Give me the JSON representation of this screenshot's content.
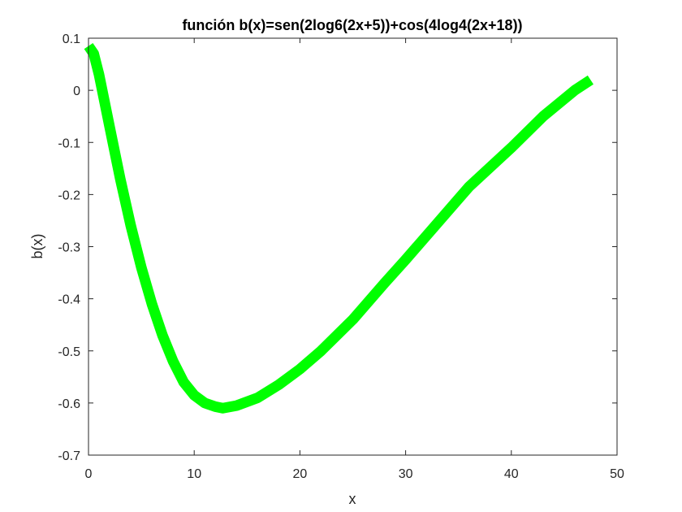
{
  "chart_data": {
    "type": "line",
    "title": "función b(x)=sen(2log6(2x+5))+cos(4log4(2x+18))",
    "xlabel": "x",
    "ylabel": "b(x)",
    "xlim": [
      0,
      50
    ],
    "ylim": [
      -0.7,
      0.1
    ],
    "xticks": [
      0,
      10,
      20,
      30,
      40,
      50
    ],
    "xtick_labels": [
      "0",
      "10",
      "20",
      "30",
      "40",
      "50"
    ],
    "yticks": [
      0.1,
      0,
      -0.1,
      -0.2,
      -0.3,
      -0.4,
      -0.5,
      -0.6,
      -0.7
    ],
    "ytick_labels": [
      "0.1",
      "0",
      "-0.1",
      "-0.2",
      "-0.3",
      "-0.4",
      "-0.5",
      "-0.6",
      "-0.7"
    ],
    "grid": false,
    "legend": "none",
    "series": [
      {
        "color": "#00ff00",
        "x": [
          0,
          0.5,
          1,
          2,
          3,
          4,
          5,
          6,
          7,
          8,
          9,
          10,
          11,
          12,
          12.7,
          14,
          16,
          18,
          20,
          22,
          25,
          28,
          30,
          33,
          36,
          40,
          43,
          46,
          47.5
        ],
        "y": [
          0.085,
          0.07,
          0.03,
          -0.07,
          -0.17,
          -0.26,
          -0.34,
          -0.41,
          -0.47,
          -0.52,
          -0.56,
          -0.585,
          -0.6,
          -0.607,
          -0.61,
          -0.605,
          -0.59,
          -0.565,
          -0.535,
          -0.5,
          -0.44,
          -0.37,
          -0.325,
          -0.255,
          -0.185,
          -0.11,
          -0.05,
          0.0,
          0.02
        ]
      }
    ]
  }
}
